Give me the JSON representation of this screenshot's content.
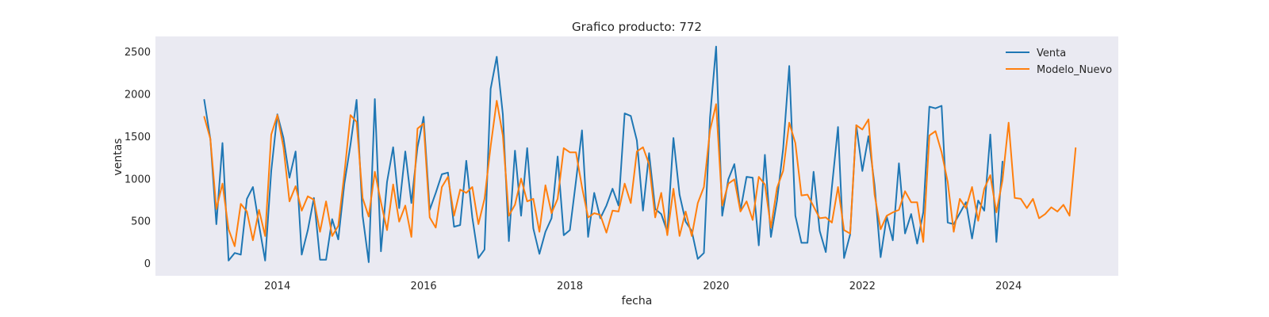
{
  "chart_data": {
    "type": "line",
    "title": "Grafico producto: 772",
    "xlabel": "fecha",
    "ylabel": "ventas",
    "xlim": [
      "2012-05-01",
      "2025-07-01"
    ],
    "ylim": [
      -150,
      2680
    ],
    "grid": false,
    "legend": "top-right",
    "xticks": [
      "2014-01-01",
      "2016-01-01",
      "2018-01-01",
      "2020-01-01",
      "2022-01-01",
      "2024-01-01"
    ],
    "xtick_labels": [
      "2014",
      "2016",
      "2018",
      "2020",
      "2022",
      "2024"
    ],
    "yticks": [
      0,
      500,
      1000,
      1500,
      2000,
      2500
    ],
    "colors": {
      "background": "#eaeaf2",
      "venta": "#1f77b4",
      "modelo": "#ff7f0e"
    },
    "series": [
      {
        "name": "Venta",
        "start": "2013-01",
        "values": [
          1930,
          1470,
          460,
          1420,
          30,
          120,
          100,
          760,
          900,
          450,
          30,
          1090,
          1760,
          1480,
          1010,
          1320,
          100,
          390,
          770,
          40,
          40,
          520,
          280,
          940,
          1400,
          1930,
          560,
          10,
          1940,
          140,
          960,
          1370,
          650,
          1320,
          710,
          1370,
          1730,
          630,
          830,
          1050,
          1070,
          430,
          450,
          1210,
          540,
          60,
          160,
          2060,
          2440,
          1760,
          260,
          1330,
          560,
          1360,
          410,
          110,
          370,
          530,
          1260,
          330,
          390,
          970,
          1570,
          310,
          830,
          530,
          680,
          880,
          680,
          1770,
          1740,
          1450,
          620,
          1300,
          640,
          580,
          370,
          1480,
          810,
          490,
          380,
          50,
          120,
          1720,
          2560,
          560,
          990,
          1170,
          620,
          1020,
          1010,
          210,
          1280,
          310,
          740,
          1350,
          2330,
          560,
          240,
          240,
          1080,
          380,
          130,
          900,
          1610,
          60,
          340,
          1630,
          1090,
          1500,
          920,
          70,
          550,
          270,
          1180,
          350,
          580,
          230,
          600,
          1850,
          1830,
          1860,
          480,
          460,
          590,
          720,
          290,
          740,
          620,
          1520,
          250,
          1200
        ]
      },
      {
        "name": "Modelo_Nuevo",
        "start": "2013-01",
        "values": [
          1730,
          1470,
          640,
          940,
          400,
          200,
          700,
          610,
          270,
          630,
          320,
          1520,
          1750,
          1370,
          730,
          910,
          620,
          790,
          750,
          370,
          730,
          320,
          440,
          1060,
          1750,
          1670,
          770,
          550,
          1080,
          720,
          390,
          930,
          490,
          680,
          310,
          1590,
          1650,
          540,
          420,
          900,
          1020,
          560,
          870,
          830,
          900,
          460,
          760,
          1380,
          1920,
          1510,
          560,
          690,
          1000,
          730,
          760,
          370,
          920,
          590,
          760,
          1360,
          1310,
          1310,
          900,
          540,
          590,
          570,
          360,
          620,
          610,
          940,
          710,
          1320,
          1370,
          1170,
          540,
          830,
          330,
          880,
          320,
          610,
          320,
          710,
          900,
          1570,
          1880,
          680,
          940,
          990,
          610,
          730,
          510,
          1020,
          930,
          420,
          890,
          1090,
          1660,
          1420,
          800,
          810,
          670,
          530,
          540,
          480,
          900,
          390,
          350,
          1630,
          1580,
          1700,
          810,
          400,
          560,
          600,
          630,
          850,
          720,
          720,
          250,
          1510,
          1560,
          1310,
          960,
          370,
          760,
          650,
          900,
          500,
          880,
          1040,
          600,
          980,
          1660,
          770,
          760,
          650,
          760,
          530,
          580,
          660,
          610,
          690,
          560,
          1360
        ]
      }
    ]
  }
}
